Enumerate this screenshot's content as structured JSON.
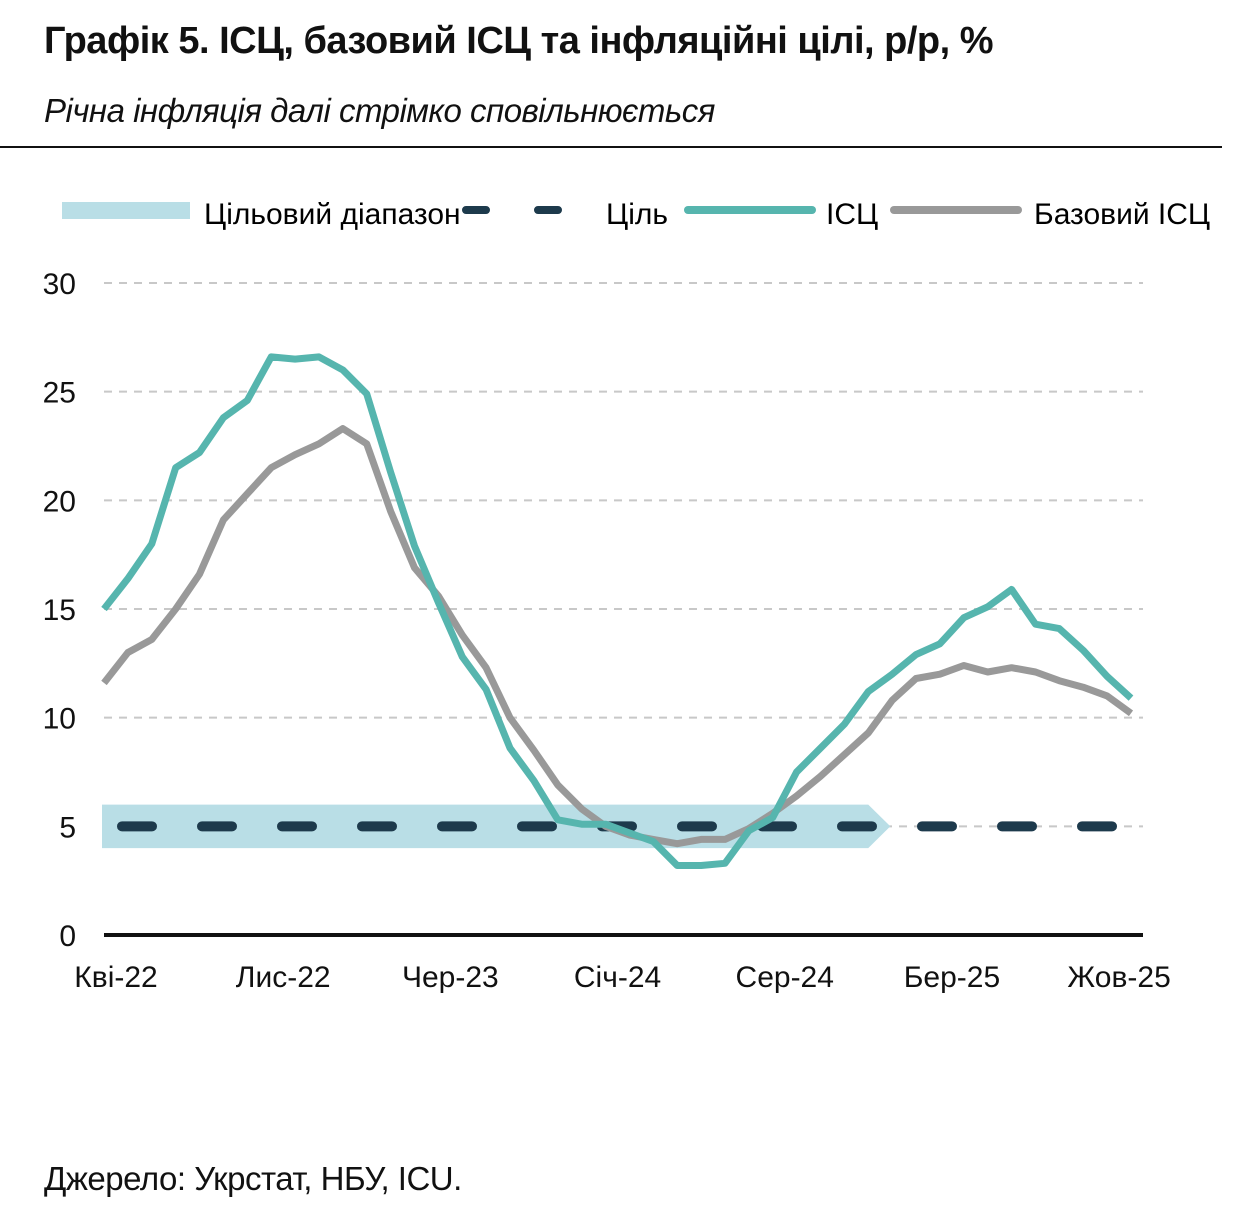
{
  "title": "Графік 5. ІСЦ, базовий ІСЦ та інфляційні цілі, р/р, %",
  "subtitle": "Річна інфляція далі стрімко сповільнюється",
  "source": "Джерело: Укрстат, НБУ, ICU.",
  "colors": {
    "cpi": "#56b5ae",
    "core": "#999999",
    "target": "#1d3a4c",
    "band": "#b9dee6",
    "grid": "#c8c8c8",
    "axis": "#111111"
  },
  "chart_data": {
    "type": "line",
    "title": "Графік 5. ІСЦ, базовий ІСЦ та інфляційні цілі, р/р, %",
    "xlabel": "",
    "ylabel": "",
    "ylim": [
      0,
      30
    ],
    "yticks": [
      "0",
      "5",
      "10",
      "15",
      "20",
      "25",
      "30"
    ],
    "grid": true,
    "legend_position": "top",
    "x_tick_labels": [
      "Кві-22",
      "Лис-22",
      "Чер-23",
      "Січ-24",
      "Сер-24",
      "Бер-25",
      "Жов-25"
    ],
    "x_tick_indices": [
      0,
      7,
      14,
      21,
      28,
      35,
      42
    ],
    "legend": {
      "band": "Цільовий діапазон",
      "target": "Ціль",
      "cpi": "ІСЦ",
      "core": "Базовий ІСЦ"
    },
    "target": {
      "name": "Ціль",
      "value": 5
    },
    "target_band": {
      "name": "Цільовий діапазон",
      "low": 4,
      "high": 6,
      "end_index": 32
    },
    "series": [
      {
        "name": "ІСЦ",
        "key": "cpi",
        "values": [
          15.0,
          16.4,
          18.0,
          21.5,
          22.2,
          23.8,
          24.6,
          26.6,
          26.5,
          26.6,
          26.0,
          24.9,
          21.3,
          17.9,
          15.3,
          12.8,
          11.3,
          8.6,
          7.1,
          5.3,
          5.1,
          5.1,
          4.7,
          4.3,
          3.2,
          3.2,
          3.3,
          4.8,
          5.4,
          7.5,
          8.6,
          9.7,
          11.2,
          12.0,
          12.9,
          13.4,
          14.6,
          15.1,
          15.9,
          14.3,
          14.1,
          13.1,
          11.9,
          10.9
        ]
      },
      {
        "name": "Базовий ІСЦ",
        "key": "core",
        "values": [
          11.6,
          13.0,
          13.6,
          15.0,
          16.6,
          19.1,
          20.3,
          21.5,
          22.1,
          22.6,
          23.3,
          22.6,
          19.5,
          16.9,
          15.6,
          13.8,
          12.3,
          10.0,
          8.5,
          6.9,
          5.8,
          5.0,
          4.6,
          4.4,
          4.2,
          4.4,
          4.4,
          4.9,
          5.6,
          6.4,
          7.3,
          8.3,
          9.3,
          10.8,
          11.8,
          12.0,
          12.4,
          12.1,
          12.3,
          12.1,
          11.7,
          11.4,
          11.0,
          10.2
        ]
      }
    ]
  }
}
